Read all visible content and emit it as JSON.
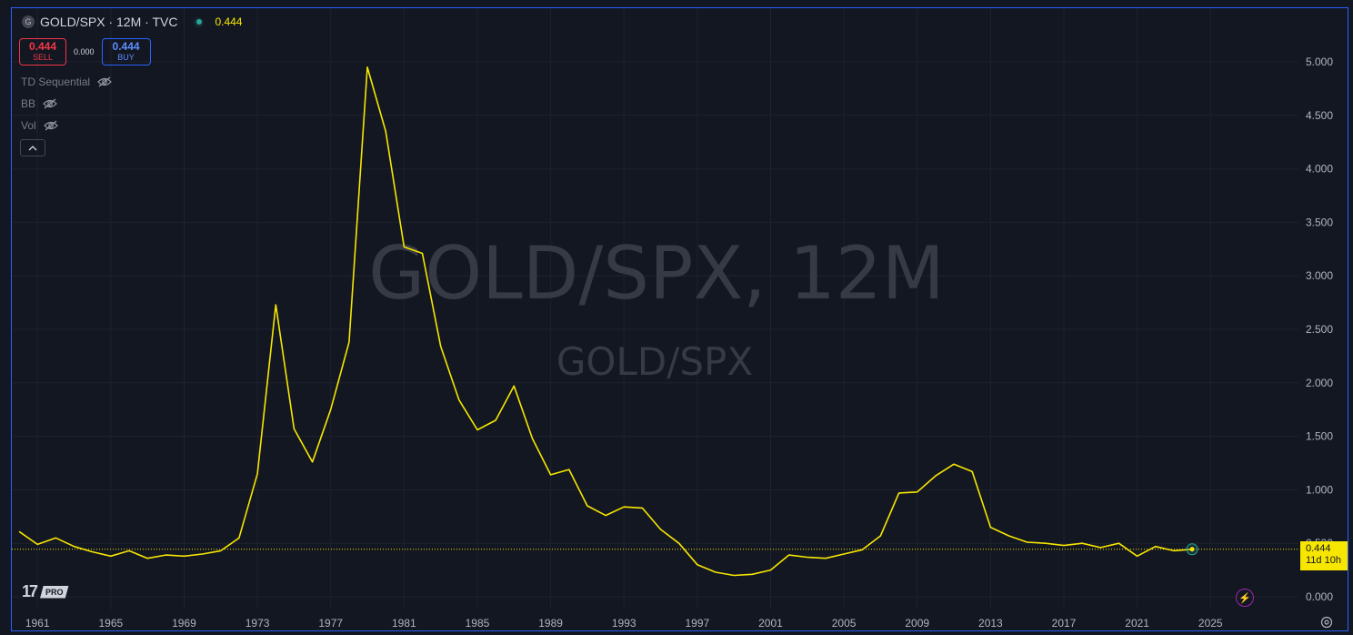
{
  "header": {
    "symbol_initial": "G",
    "title": "GOLD/SPX · 12M · TVC",
    "last_price": "0.444"
  },
  "trade": {
    "sell_price": "0.444",
    "sell_label": "SELL",
    "spread": "0.000",
    "buy_price": "0.444",
    "buy_label": "BUY"
  },
  "indicators": [
    {
      "label": "TD Sequential"
    },
    {
      "label": "BB"
    },
    {
      "label": "Vol"
    }
  ],
  "watermark": {
    "line1": "GOLD/SPX, 12M",
    "line2": "GOLD/SPX"
  },
  "logo": {
    "badge": "PRO"
  },
  "price_tag": {
    "value": "0.444",
    "countdown": "11d 10h"
  },
  "colors": {
    "background": "#131722",
    "line": "#f7e600",
    "frame": "#2962ff",
    "sell": "#f23645",
    "buy": "#2962ff"
  },
  "icons": [
    "eye-off-icon",
    "chevron-up-icon",
    "lightning-icon",
    "settings-icon"
  ],
  "chart_data": {
    "type": "line",
    "title": "",
    "xlabel": "",
    "ylabel": "",
    "ylim": [
      0,
      5.5
    ],
    "xlim": [
      1959.6,
      2029.8
    ],
    "grid": true,
    "y_ticks": [
      "0.000",
      "0.500",
      "1.000",
      "1.500",
      "2.000",
      "2.500",
      "3.000",
      "3.500",
      "4.000",
      "4.500",
      "5.000"
    ],
    "x_ticks": [
      "1961",
      "1965",
      "1969",
      "1973",
      "1977",
      "1981",
      "1985",
      "1989",
      "1993",
      "1997",
      "2001",
      "2005",
      "2009",
      "2013",
      "2017",
      "2021",
      "2025"
    ],
    "current_value": 0.444,
    "series": [
      {
        "x": [
          1960,
          1961,
          1962,
          1963,
          1964,
          1965,
          1966,
          1967,
          1968,
          1969,
          1970,
          1971,
          1972,
          1973,
          1974,
          1975,
          1976,
          1977,
          1978,
          1979,
          1980,
          1981,
          1982,
          1983,
          1984,
          1985,
          1986,
          1987,
          1988,
          1989,
          1990,
          1991,
          1992,
          1993,
          1994,
          1995,
          1996,
          1997,
          1998,
          1999,
          2000,
          2001,
          2002,
          2003,
          2004,
          2005,
          2006,
          2007,
          2008,
          2009,
          2010,
          2011,
          2012,
          2013,
          2014,
          2015,
          2016,
          2017,
          2018,
          2019,
          2020,
          2021,
          2022,
          2023,
          2024
        ],
        "y": [
          0.61,
          0.49,
          0.55,
          0.47,
          0.42,
          0.38,
          0.43,
          0.36,
          0.39,
          0.38,
          0.4,
          0.43,
          0.55,
          1.15,
          2.73,
          1.57,
          1.26,
          1.75,
          2.38,
          4.95,
          4.35,
          3.27,
          3.21,
          2.34,
          1.84,
          1.56,
          1.65,
          1.97,
          1.48,
          1.14,
          1.19,
          0.85,
          0.76,
          0.84,
          0.83,
          0.63,
          0.5,
          0.3,
          0.23,
          0.2,
          0.21,
          0.25,
          0.39,
          0.37,
          0.36,
          0.4,
          0.44,
          0.57,
          0.97,
          0.98,
          1.13,
          1.24,
          1.17,
          0.65,
          0.57,
          0.51,
          0.5,
          0.48,
          0.5,
          0.46,
          0.5,
          0.38,
          0.47,
          0.43,
          0.444
        ]
      }
    ]
  }
}
